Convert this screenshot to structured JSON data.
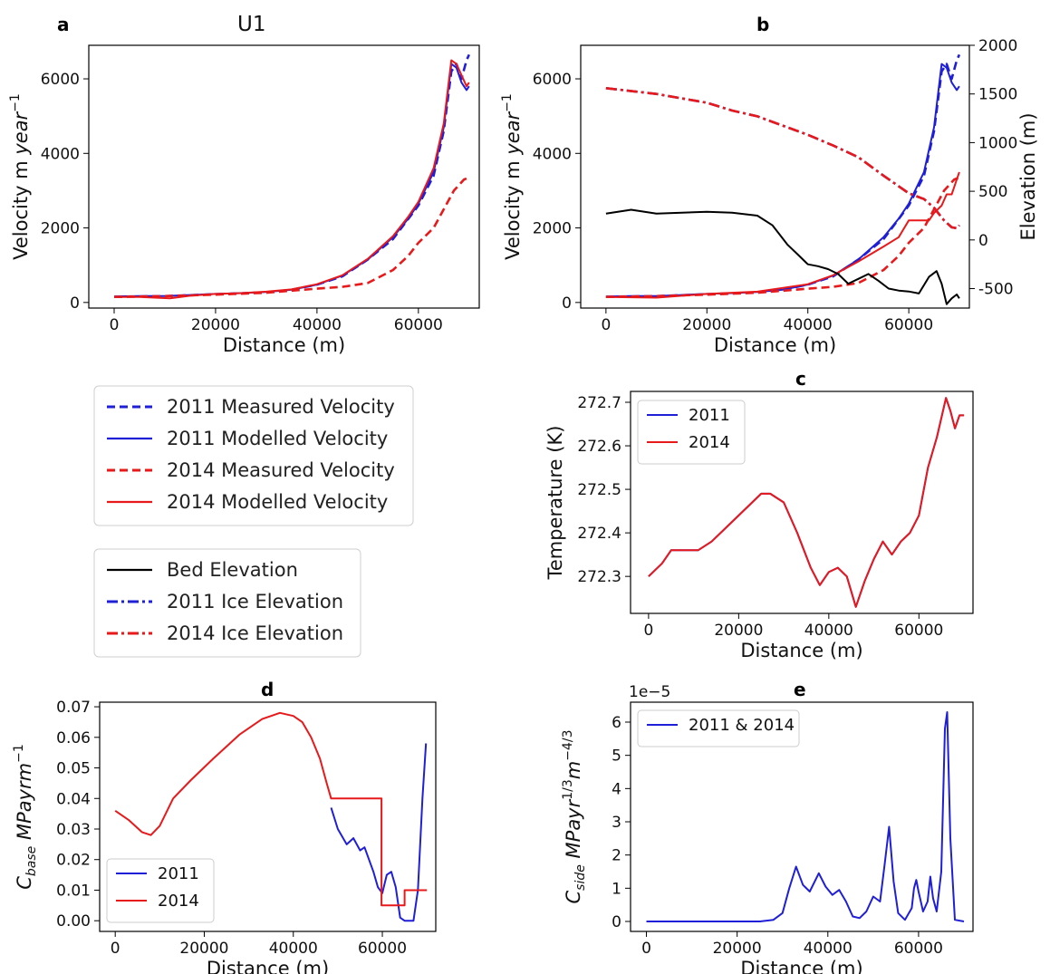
{
  "figure": {
    "panel_title_a": "U1",
    "legend_velocity": [
      {
        "label": "2011 Measured Velocity",
        "color": "#1f1fd8",
        "dash": "dashed"
      },
      {
        "label": "2011 Modelled Velocity",
        "color": "#1f1fd8",
        "dash": "solid"
      },
      {
        "label": "2014 Measured Velocity",
        "color": "#e8191a",
        "dash": "dashed"
      },
      {
        "label": "2014 Modelled Velocity",
        "color": "#e8191a",
        "dash": "solid"
      }
    ],
    "legend_elevation": [
      {
        "label": "Bed Elevation",
        "color": "#000000",
        "dash": "solid"
      },
      {
        "label": "2011 Ice Elevation",
        "color": "#1f1fd8",
        "dash": "dashdot"
      },
      {
        "label": "2014 Ice Elevation",
        "color": "#e8191a",
        "dash": "dashdot"
      }
    ]
  },
  "chart_data": [
    {
      "id": "a",
      "type": "line",
      "panel_label": "a",
      "title": "U1",
      "xlabel": "Distance (m)",
      "ylabel": "Velocity m year⁻¹",
      "xlim": [
        -5000,
        72000
      ],
      "ylim": [
        -150,
        6900
      ],
      "xticks": [
        0,
        20000,
        40000,
        60000
      ],
      "yticks": [
        0,
        2000,
        4000,
        6000
      ],
      "series": [
        {
          "name": "2011 Measured Velocity",
          "color": "#1f1fd8",
          "dash": "dashed",
          "x": [
            0,
            10000,
            20000,
            30000,
            35000,
            40000,
            45000,
            50000,
            55000,
            60000,
            63000,
            65000,
            66500,
            67500,
            68500,
            69500,
            70000
          ],
          "y": [
            150,
            170,
            220,
            270,
            340,
            480,
            700,
            1150,
            1700,
            2600,
            3400,
            4600,
            6200,
            6400,
            6000,
            6500,
            6650
          ]
        },
        {
          "name": "2011 Modelled Velocity",
          "color": "#1f1fd8",
          "dash": "solid",
          "x": [
            0,
            5000,
            10000,
            15000,
            20000,
            25000,
            30000,
            35000,
            40000,
            45000,
            50000,
            55000,
            58000,
            60000,
            63000,
            65000,
            66500,
            67500,
            68500,
            69500,
            70000
          ],
          "y": [
            160,
            170,
            170,
            200,
            230,
            250,
            280,
            340,
            480,
            720,
            1150,
            1750,
            2250,
            2650,
            3500,
            4700,
            6400,
            6300,
            5900,
            5700,
            5800
          ]
        },
        {
          "name": "2014 Measured Velocity",
          "color": "#e8191a",
          "dash": "dashed",
          "x": [
            0,
            10000,
            20000,
            30000,
            40000,
            45000,
            50000,
            55000,
            58000,
            60000,
            63000,
            65000,
            67000,
            69000,
            70000
          ],
          "y": [
            150,
            170,
            210,
            260,
            370,
            420,
            520,
            870,
            1250,
            1600,
            2000,
            2500,
            3000,
            3300,
            3350
          ]
        },
        {
          "name": "2014 Modelled Velocity",
          "color": "#e8191a",
          "dash": "solid",
          "x": [
            0,
            5000,
            8000,
            11000,
            15000,
            20000,
            25000,
            30000,
            35000,
            40000,
            45000,
            50000,
            55000,
            58000,
            60000,
            63000,
            65000,
            66500,
            67500,
            68500,
            69500,
            70000
          ],
          "y": [
            150,
            150,
            130,
            110,
            180,
            230,
            250,
            290,
            350,
            490,
            730,
            1170,
            1780,
            2300,
            2700,
            3600,
            4800,
            6500,
            6400,
            6100,
            5800,
            5900
          ]
        }
      ]
    },
    {
      "id": "b",
      "type": "line",
      "panel_label": "b",
      "xlabel": "Distance (m)",
      "ylabel": "Velocity m year⁻¹",
      "ylabel_right": "Elevation (m)",
      "xlim": [
        -5000,
        72000
      ],
      "ylim": [
        -150,
        6900
      ],
      "ylim_right": [
        -700,
        2000
      ],
      "xticks": [
        0,
        20000,
        40000,
        60000
      ],
      "yticks": [
        0,
        2000,
        4000,
        6000
      ],
      "yticks_right": [
        -500,
        0,
        500,
        1000,
        1500,
        2000
      ],
      "series": [
        {
          "name": "2011 Measured Velocity",
          "color": "#1f1fd8",
          "dash": "dashed",
          "axis": "left",
          "x": [
            0,
            10000,
            20000,
            30000,
            35000,
            40000,
            45000,
            50000,
            55000,
            60000,
            63000,
            65000,
            66500,
            67500,
            68500,
            69500,
            70000
          ],
          "y": [
            150,
            170,
            220,
            270,
            340,
            480,
            700,
            1150,
            1700,
            2600,
            3400,
            4600,
            6200,
            6400,
            6000,
            6500,
            6650
          ]
        },
        {
          "name": "2011 Modelled Velocity",
          "color": "#1f1fd8",
          "dash": "solid",
          "axis": "left",
          "x": [
            0,
            5000,
            10000,
            15000,
            20000,
            25000,
            30000,
            35000,
            40000,
            45000,
            50000,
            55000,
            58000,
            60000,
            63000,
            65000,
            66500,
            67500,
            68500,
            69500,
            70000
          ],
          "y": [
            160,
            170,
            170,
            200,
            230,
            250,
            280,
            340,
            480,
            720,
            1150,
            1750,
            2250,
            2650,
            3500,
            4700,
            6400,
            6300,
            5900,
            5700,
            5800
          ]
        },
        {
          "name": "2014 Measured Velocity",
          "color": "#e8191a",
          "dash": "dashed",
          "axis": "left",
          "x": [
            0,
            10000,
            20000,
            30000,
            40000,
            45000,
            50000,
            55000,
            58000,
            60000,
            63000,
            65000,
            67000,
            69000,
            70000
          ],
          "y": [
            150,
            170,
            210,
            260,
            370,
            420,
            520,
            870,
            1250,
            1600,
            2000,
            2500,
            3000,
            3300,
            3350
          ]
        },
        {
          "name": "2014 Modelled Velocity",
          "color": "#e8191a",
          "dash": "solid",
          "axis": "left",
          "x": [
            0,
            10000,
            20000,
            30000,
            40000,
            45000,
            50000,
            55000,
            58000,
            60000,
            62000,
            64000,
            65000,
            66500,
            67500,
            68500,
            69500,
            70000
          ],
          "y": [
            150,
            130,
            230,
            290,
            490,
            730,
            1100,
            1500,
            1750,
            2200,
            2200,
            2200,
            2400,
            2600,
            2900,
            2900,
            3300,
            3500
          ]
        },
        {
          "name": "Bed Elevation",
          "color": "#000000",
          "dash": "solid",
          "axis": "right",
          "x": [
            0,
            5000,
            10000,
            20000,
            25000,
            30000,
            33000,
            36000,
            38000,
            40000,
            42000,
            44000,
            46000,
            48000,
            50000,
            52000,
            54000,
            56000,
            58000,
            60000,
            62000,
            64000,
            65500,
            66500,
            67500,
            68500,
            69500,
            70000
          ],
          "y": [
            270,
            310,
            270,
            290,
            280,
            250,
            150,
            -50,
            -150,
            -250,
            -270,
            -300,
            -350,
            -450,
            -400,
            -350,
            -420,
            -500,
            -520,
            -530,
            -550,
            -380,
            -320,
            -450,
            -660,
            -600,
            -560,
            -600
          ]
        },
        {
          "name": "2011 Ice Elevation",
          "color": "#1f1fd8",
          "dash": "dashdot",
          "axis": "right",
          "x": [
            0,
            10000,
            20000,
            25000,
            30000,
            40000,
            45000,
            50000,
            55000,
            60000,
            63000,
            65000,
            67000,
            68500,
            69500,
            70000
          ],
          "y": [
            1560,
            1500,
            1410,
            1330,
            1270,
            1080,
            970,
            850,
            660,
            480,
            420,
            330,
            200,
            130,
            120,
            150
          ]
        },
        {
          "name": "2014 Ice Elevation",
          "color": "#e8191a",
          "dash": "dashdot",
          "axis": "right",
          "x": [
            0,
            10000,
            20000,
            25000,
            30000,
            40000,
            45000,
            50000,
            55000,
            60000,
            63000,
            65000,
            67000,
            68500,
            69500,
            70000
          ],
          "y": [
            1560,
            1500,
            1410,
            1330,
            1270,
            1080,
            970,
            850,
            660,
            480,
            420,
            330,
            200,
            130,
            120,
            150
          ]
        }
      ]
    },
    {
      "id": "c",
      "type": "line",
      "panel_label": "c",
      "xlabel": "Distance (m)",
      "ylabel": "Temperature (K)",
      "xlim": [
        -4000,
        72000
      ],
      "ylim": [
        272.215,
        272.725
      ],
      "xticks": [
        0,
        20000,
        40000,
        60000
      ],
      "yticks": [
        272.3,
        272.4,
        272.5,
        272.6,
        272.7
      ],
      "yticklabels": [
        "272.3",
        "272.4",
        "272.5",
        "272.6",
        "272.7"
      ],
      "series": [
        {
          "name": "2011",
          "color": "#1f1fd8",
          "dash": "solid",
          "x": [
            0,
            3000,
            5000,
            8000,
            11000,
            14000,
            18000,
            21000,
            25000,
            27000,
            30000,
            33000,
            36000,
            38000,
            40000,
            42000,
            44000,
            46000,
            48000,
            50000,
            52000,
            54000,
            56000,
            58000,
            60000,
            62000,
            64000,
            66000,
            67000,
            68000,
            69000,
            70000
          ],
          "y": [
            272.3,
            272.33,
            272.36,
            272.36,
            272.36,
            272.38,
            272.42,
            272.45,
            272.49,
            272.49,
            272.47,
            272.4,
            272.32,
            272.28,
            272.31,
            272.32,
            272.3,
            272.23,
            272.29,
            272.34,
            272.38,
            272.35,
            272.38,
            272.4,
            272.44,
            272.55,
            272.62,
            272.71,
            272.68,
            272.64,
            272.67,
            272.67
          ]
        },
        {
          "name": "2014",
          "color": "#e8191a",
          "dash": "solid",
          "x": [
            0,
            3000,
            5000,
            8000,
            11000,
            14000,
            18000,
            21000,
            25000,
            27000,
            30000,
            33000,
            36000,
            38000,
            40000,
            42000,
            44000,
            46000,
            48000,
            50000,
            52000,
            54000,
            56000,
            58000,
            60000,
            62000,
            64000,
            66000,
            67000,
            68000,
            69000,
            70000
          ],
          "y": [
            272.3,
            272.33,
            272.36,
            272.36,
            272.36,
            272.38,
            272.42,
            272.45,
            272.49,
            272.49,
            272.47,
            272.4,
            272.32,
            272.28,
            272.31,
            272.32,
            272.3,
            272.23,
            272.29,
            272.34,
            272.38,
            272.35,
            272.38,
            272.4,
            272.44,
            272.55,
            272.62,
            272.71,
            272.68,
            272.64,
            272.67,
            272.67
          ]
        }
      ]
    },
    {
      "id": "d",
      "type": "line",
      "panel_label": "d",
      "xlabel": "Distance (m)",
      "ylabel": "C_base MPayrm⁻¹",
      "xlim": [
        -3500,
        72000
      ],
      "ylim": [
        -0.0035,
        0.0715
      ],
      "xticks": [
        0,
        20000,
        40000,
        60000
      ],
      "yticks": [
        0.0,
        0.01,
        0.02,
        0.03,
        0.04,
        0.05,
        0.06,
        0.07
      ],
      "yticklabels": [
        "0.00",
        "0.01",
        "0.02",
        "0.03",
        "0.04",
        "0.05",
        "0.06",
        "0.07"
      ],
      "series": [
        {
          "name": "2011",
          "color": "#1f1fd8",
          "dash": "solid",
          "x": [
            48500,
            50000,
            52000,
            53500,
            55000,
            56000,
            57000,
            58000,
            59000,
            60000,
            61000,
            62000,
            63000,
            64000,
            65000,
            66000,
            67000,
            68000,
            69000,
            69800
          ],
          "y": [
            0.037,
            0.03,
            0.025,
            0.027,
            0.023,
            0.024,
            0.02,
            0.016,
            0.011,
            0.009,
            0.015,
            0.016,
            0.011,
            0.001,
            0.0,
            0.0,
            0.0,
            0.01,
            0.04,
            0.058
          ]
        },
        {
          "name": "2014",
          "color": "#e8191a",
          "dash": "solid",
          "x": [
            0,
            3000,
            6000,
            8000,
            10000,
            13000,
            17000,
            22000,
            28000,
            33000,
            37000,
            40000,
            42000,
            44000,
            46000,
            47500,
            48500,
            48500,
            59800,
            59800,
            65000,
            65000,
            70000
          ],
          "y": [
            0.036,
            0.033,
            0.029,
            0.028,
            0.031,
            0.04,
            0.046,
            0.053,
            0.061,
            0.066,
            0.068,
            0.067,
            0.065,
            0.06,
            0.053,
            0.045,
            0.04,
            0.04,
            0.04,
            0.005,
            0.005,
            0.01,
            0.01
          ]
        }
      ]
    },
    {
      "id": "e",
      "type": "line",
      "panel_label": "e",
      "xlabel": "Distance (m)",
      "ylabel": "C_side MPayr^1/3 m^-4/3",
      "offset_text": "1e−5",
      "xlim": [
        -3500,
        72000
      ],
      "ylim": [
        -0.3,
        6.6
      ],
      "xticks": [
        0,
        20000,
        40000,
        60000
      ],
      "yticks": [
        0,
        1,
        2,
        3,
        4,
        5,
        6
      ],
      "series": [
        {
          "name": "2011 & 2014",
          "color": "#1f1fd8",
          "dash": "solid",
          "x": [
            0,
            25000,
            28000,
            30000,
            31500,
            33000,
            34500,
            36000,
            38000,
            39500,
            41000,
            42500,
            44000,
            45500,
            47000,
            48500,
            50000,
            51500,
            52500,
            53500,
            54500,
            55500,
            57000,
            58500,
            59000,
            59500,
            60000,
            61000,
            62000,
            62600,
            63200,
            64000,
            65000,
            65800,
            66300,
            67000,
            68000,
            70000
          ],
          "y": [
            0.0,
            0.0,
            0.05,
            0.25,
            1.0,
            1.65,
            1.1,
            0.9,
            1.45,
            1.05,
            0.8,
            0.95,
            0.6,
            0.15,
            0.1,
            0.3,
            0.75,
            0.6,
            1.7,
            2.85,
            1.2,
            0.25,
            0.05,
            0.4,
            1.0,
            1.25,
            0.9,
            0.3,
            0.6,
            1.35,
            0.7,
            0.3,
            1.5,
            5.8,
            6.3,
            2.5,
            0.05,
            0.0
          ]
        }
      ]
    }
  ]
}
